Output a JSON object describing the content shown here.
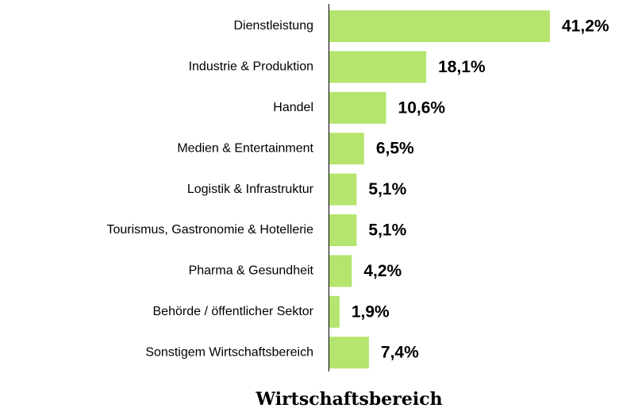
{
  "chart_data": {
    "type": "barh",
    "title": "Wirtschaftsbereich",
    "categories": [
      "Dienstleistung",
      "Industrie & Produktion",
      "Handel",
      "Medien & Entertainment",
      "Logistik & Infrastruktur",
      "Tourismus, Gastronomie & Hotellerie",
      "Pharma & Gesundheit",
      "Behörde / öffentlicher Sektor",
      "Sonstigem Wirtschaftsbereich"
    ],
    "values": [
      41.2,
      18.1,
      10.6,
      6.5,
      5.1,
      5.1,
      4.2,
      1.9,
      7.4
    ],
    "value_labels": [
      "41,2%",
      "18,1%",
      "10,6%",
      "6,5%",
      "5,1%",
      "5,1%",
      "4,2%",
      "1,9%",
      "7,4%"
    ],
    "color": "#b5e56f"
  }
}
